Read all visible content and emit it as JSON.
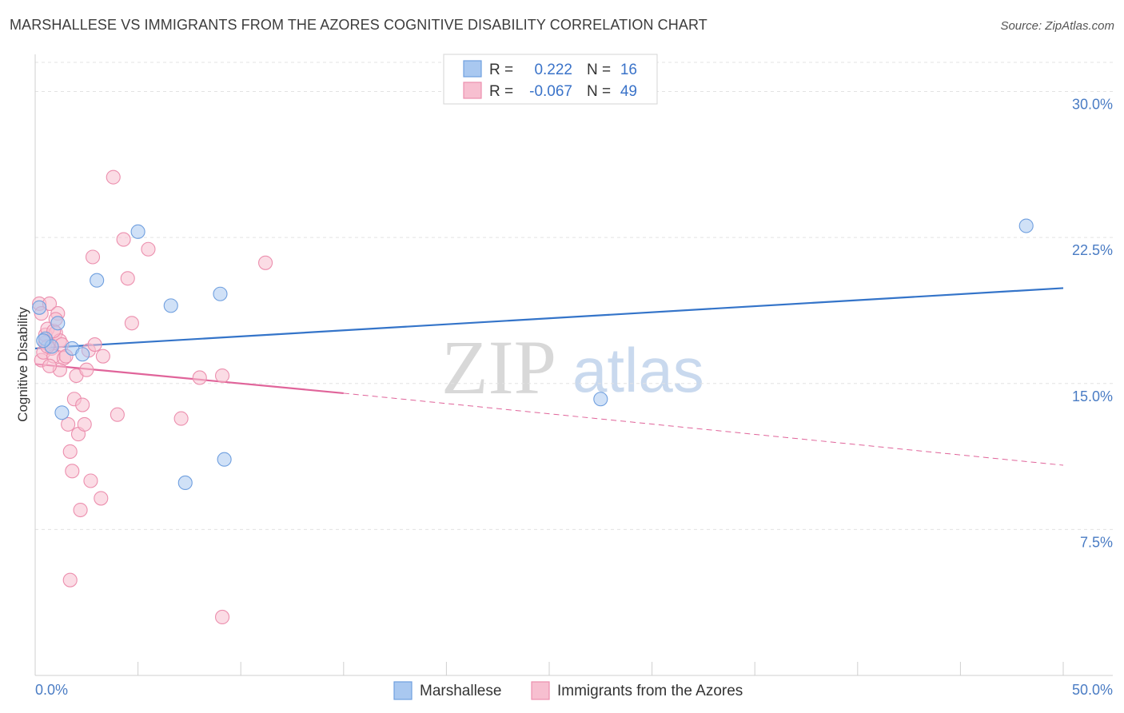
{
  "title": "MARSHALLESE VS IMMIGRANTS FROM THE AZORES COGNITIVE DISABILITY CORRELATION CHART",
  "source": "Source: ZipAtlas.com",
  "watermark": {
    "zip": "ZIP",
    "atlas": "atlas"
  },
  "chart_data": {
    "type": "scatter",
    "title": "MARSHALLESE VS IMMIGRANTS FROM THE AZORES COGNITIVE DISABILITY CORRELATION CHART",
    "xlabel": "",
    "ylabel": "Cognitive Disability",
    "xlim": [
      0,
      50
    ],
    "ylim": [
      0,
      31.5
    ],
    "x_tick_labels": [
      "0.0%",
      "50.0%"
    ],
    "y_ticks": [
      7.5,
      15.0,
      22.5,
      30.0
    ],
    "y_tick_labels": [
      "7.5%",
      "15.0%",
      "22.5%",
      "30.0%"
    ],
    "grid": true,
    "legend": [
      {
        "name": "Marshallese",
        "r_label": "R =",
        "r": "0.222",
        "n_label": "N =",
        "n": "16",
        "color": "#a9c8f0",
        "stroke": "#6f9fdf"
      },
      {
        "name": "Immigrants from the Azores",
        "r_label": "R =",
        "r": "-0.067",
        "n_label": "N =",
        "n": "49",
        "color": "#f7bfd0",
        "stroke": "#ec8fae"
      }
    ],
    "series": [
      {
        "name": "Marshallese",
        "color": "#a9c8f0",
        "stroke": "#6f9fdf",
        "line_color": "#3474c9",
        "trend": {
          "x0": 0,
          "y0": 16.8,
          "x1": 50,
          "y1": 19.9
        },
        "points": [
          [
            0.2,
            18.9
          ],
          [
            0.5,
            17.3
          ],
          [
            1.1,
            18.1
          ],
          [
            1.8,
            16.8
          ],
          [
            2.3,
            16.5
          ],
          [
            1.3,
            13.5
          ],
          [
            3.0,
            20.3
          ],
          [
            5.0,
            22.8
          ],
          [
            6.6,
            19.0
          ],
          [
            9.0,
            19.6
          ],
          [
            7.3,
            9.9
          ],
          [
            9.2,
            11.1
          ],
          [
            27.5,
            14.2
          ],
          [
            48.2,
            23.1
          ],
          [
            0.8,
            16.9
          ],
          [
            0.4,
            17.2
          ]
        ]
      },
      {
        "name": "Immigrants from the Azores",
        "color": "#f7bfd0",
        "stroke": "#ec8fae",
        "line_color": "#e0649a",
        "trend_solid": {
          "x0": 0,
          "y0": 16.0,
          "x1": 15,
          "y1": 14.5
        },
        "trend_dashed": {
          "x0": 15,
          "y0": 14.5,
          "x1": 50,
          "y1": 10.8
        },
        "points": [
          [
            0.2,
            19.1
          ],
          [
            0.3,
            16.2
          ],
          [
            0.4,
            16.6
          ],
          [
            0.5,
            17.1
          ],
          [
            0.5,
            17.5
          ],
          [
            0.6,
            17.8
          ],
          [
            0.7,
            19.1
          ],
          [
            0.8,
            16.8
          ],
          [
            0.9,
            16.4
          ],
          [
            1.0,
            17.6
          ],
          [
            1.1,
            18.6
          ],
          [
            1.2,
            15.7
          ],
          [
            1.2,
            17.2
          ],
          [
            1.3,
            17.0
          ],
          [
            1.4,
            16.3
          ],
          [
            1.5,
            16.4
          ],
          [
            1.6,
            12.9
          ],
          [
            1.7,
            11.5
          ],
          [
            1.8,
            10.5
          ],
          [
            1.9,
            14.2
          ],
          [
            2.0,
            15.4
          ],
          [
            2.1,
            12.4
          ],
          [
            2.2,
            8.5
          ],
          [
            2.3,
            13.9
          ],
          [
            2.4,
            12.9
          ],
          [
            2.5,
            15.7
          ],
          [
            2.6,
            16.7
          ],
          [
            2.7,
            10.0
          ],
          [
            2.8,
            21.5
          ],
          [
            2.9,
            17.0
          ],
          [
            3.2,
            9.1
          ],
          [
            3.3,
            16.4
          ],
          [
            3.8,
            25.6
          ],
          [
            4.0,
            13.4
          ],
          [
            4.3,
            22.4
          ],
          [
            4.5,
            20.4
          ],
          [
            4.7,
            18.1
          ],
          [
            5.5,
            21.9
          ],
          [
            7.1,
            13.2
          ],
          [
            8.0,
            15.3
          ],
          [
            9.1,
            15.4
          ],
          [
            11.2,
            21.2
          ],
          [
            1.7,
            4.9
          ],
          [
            9.1,
            3.0
          ],
          [
            0.6,
            16.9
          ],
          [
            0.9,
            17.7
          ],
          [
            1.0,
            18.3
          ],
          [
            0.3,
            18.6
          ],
          [
            0.7,
            15.9
          ]
        ]
      }
    ]
  }
}
